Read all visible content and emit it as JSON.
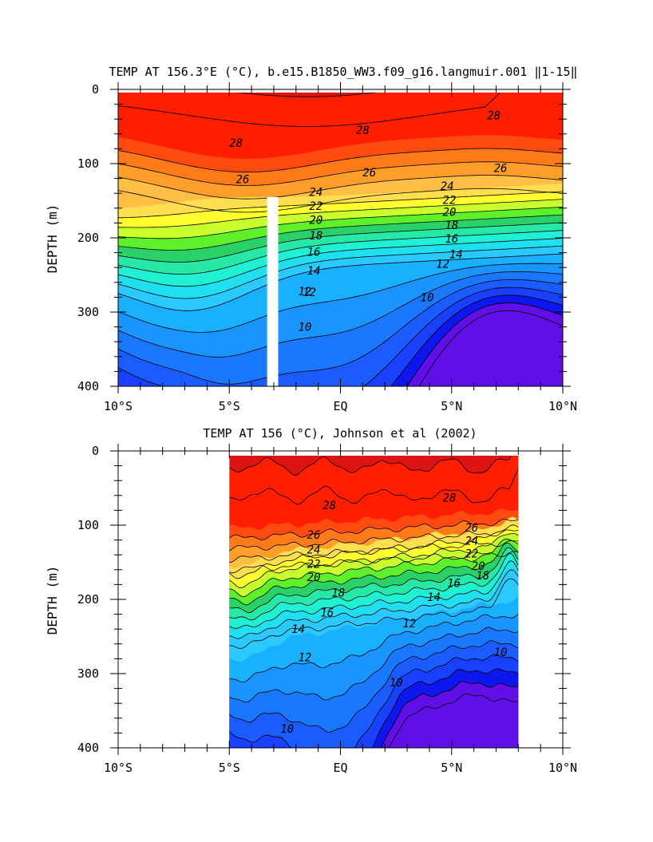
{
  "chart_data": [
    {
      "type": "heatmap",
      "subtype": "depth-latitude temperature contour section",
      "title": "TEMP AT 156.3°E (°C), b.e15.B1850_WW3.f09_g16.langmuir.001 ​‖1-15‖",
      "xlabel": "",
      "ylabel": "DEPTH (m)",
      "xlim": [
        -10,
        10
      ],
      "ylim": [
        400,
        0
      ],
      "x_ticks": [
        -10,
        -5,
        0,
        5,
        10
      ],
      "x_tick_labels": [
        "10°S",
        "5°S",
        "EQ",
        "5°N",
        "10°N"
      ],
      "y_ticks": [
        0,
        100,
        200,
        300,
        400
      ],
      "y_tick_labels": [
        "0",
        "100",
        "200",
        "300",
        "400"
      ],
      "data_extent": [
        -10,
        10
      ],
      "missing_band_lat": [
        -3.3,
        -2.8
      ],
      "missing_band_depth": [
        145,
        400
      ],
      "contour_interval": 1,
      "levels": [
        8,
        9,
        10,
        11,
        12,
        13,
        14,
        15,
        16,
        17,
        18,
        19,
        20,
        21,
        22,
        23,
        24,
        25,
        26,
        27,
        28,
        29
      ],
      "contour_labels": [
        {
          "value": "28",
          "lat": -4.7,
          "depth": 72
        },
        {
          "value": "28",
          "lat": 1.0,
          "depth": 55
        },
        {
          "value": "28",
          "lat": 6.9,
          "depth": 35
        },
        {
          "value": "26",
          "lat": -4.4,
          "depth": 121
        },
        {
          "value": "26",
          "lat": 1.3,
          "depth": 112
        },
        {
          "value": "26",
          "lat": 7.2,
          "depth": 106
        },
        {
          "value": "24",
          "lat": -1.1,
          "depth": 138
        },
        {
          "value": "24",
          "lat": 4.8,
          "depth": 130
        },
        {
          "value": "22",
          "lat": -1.1,
          "depth": 157
        },
        {
          "value": "22",
          "lat": 4.9,
          "depth": 149
        },
        {
          "value": "20",
          "lat": -1.1,
          "depth": 176
        },
        {
          "value": "20",
          "lat": 4.9,
          "depth": 165
        },
        {
          "value": "18",
          "lat": -1.1,
          "depth": 197
        },
        {
          "value": "18",
          "lat": 5.0,
          "depth": 183
        },
        {
          "value": "16",
          "lat": -1.2,
          "depth": 219
        },
        {
          "value": "16",
          "lat": 5.0,
          "depth": 201
        },
        {
          "value": "14",
          "lat": -1.2,
          "depth": 244
        },
        {
          "value": "14",
          "lat": 5.2,
          "depth": 222
        },
        {
          "value": "12",
          "lat": -1.6,
          "depth": 272
        },
        {
          "value": "12",
          "lat": 4.6,
          "depth": 235
        },
        {
          "value": "12",
          "lat": -1.4,
          "depth": 273
        },
        {
          "value": "10",
          "lat": -1.6,
          "depth": 320
        },
        {
          "value": "10",
          "lat": 3.9,
          "depth": 280
        }
      ]
    },
    {
      "type": "heatmap",
      "subtype": "depth-latitude temperature contour section (observations)",
      "title": "TEMP AT 156 (°C), Johnson et al (2002)",
      "xlabel": "",
      "ylabel": "DEPTH (m)",
      "xlim": [
        -10,
        10
      ],
      "ylim": [
        400,
        0
      ],
      "x_ticks": [
        -10,
        -5,
        0,
        5,
        10
      ],
      "x_tick_labels": [
        "10°S",
        "5°S",
        "EQ",
        "5°N",
        "10°N"
      ],
      "y_ticks": [
        0,
        100,
        200,
        300,
        400
      ],
      "y_tick_labels": [
        "0",
        "100",
        "200",
        "300",
        "400"
      ],
      "data_extent": [
        -5,
        8
      ],
      "contour_interval": 1,
      "levels": [
        8,
        9,
        10,
        11,
        12,
        13,
        14,
        15,
        16,
        17,
        18,
        19,
        20,
        21,
        22,
        23,
        24,
        25,
        26,
        27,
        28,
        29
      ],
      "contour_labels": [
        {
          "value": "28",
          "lat": -0.5,
          "depth": 73
        },
        {
          "value": "28",
          "lat": 4.9,
          "depth": 63
        },
        {
          "value": "26",
          "lat": -1.2,
          "depth": 113
        },
        {
          "value": "26",
          "lat": 5.9,
          "depth": 103
        },
        {
          "value": "24",
          "lat": -1.2,
          "depth": 133
        },
        {
          "value": "24",
          "lat": 5.9,
          "depth": 121
        },
        {
          "value": "22",
          "lat": -1.2,
          "depth": 152
        },
        {
          "value": "22",
          "lat": 5.9,
          "depth": 138
        },
        {
          "value": "20",
          "lat": -1.2,
          "depth": 170
        },
        {
          "value": "20",
          "lat": 6.2,
          "depth": 155
        },
        {
          "value": "18",
          "lat": -0.1,
          "depth": 191
        },
        {
          "value": "18",
          "lat": 6.4,
          "depth": 168
        },
        {
          "value": "16",
          "lat": -0.6,
          "depth": 218
        },
        {
          "value": "16",
          "lat": 5.1,
          "depth": 178
        },
        {
          "value": "14",
          "lat": -1.9,
          "depth": 240
        },
        {
          "value": "14",
          "lat": 4.2,
          "depth": 197
        },
        {
          "value": "12",
          "lat": 3.1,
          "depth": 232
        },
        {
          "value": "12",
          "lat": -1.6,
          "depth": 278
        },
        {
          "value": "10",
          "lat": 2.5,
          "depth": 312
        },
        {
          "value": "10",
          "lat": 7.2,
          "depth": 271
        },
        {
          "value": "10",
          "lat": -2.4,
          "depth": 374
        }
      ]
    }
  ],
  "colors": {
    "t29": "#dc1414",
    "t28": "#ff1e00",
    "t27": "#ff4a10",
    "t26": "#ff7a18",
    "t25": "#ff9e28",
    "t24": "#ffbe46",
    "t23": "#ffde50",
    "t22": "#ffff30",
    "t21": "#c8ff2c",
    "t20": "#5ef02a",
    "t19": "#2ad068",
    "t18": "#28e8a8",
    "t17": "#20f0d4",
    "t16": "#20e0f0",
    "t15": "#2acaff",
    "t14": "#18b0ff",
    "t13": "#1a94ff",
    "t12": "#1a78ff",
    "t11": "#1a5cff",
    "t10": "#1a40ff",
    "t9": "#0e16ee",
    "t8": "#6010e6"
  }
}
